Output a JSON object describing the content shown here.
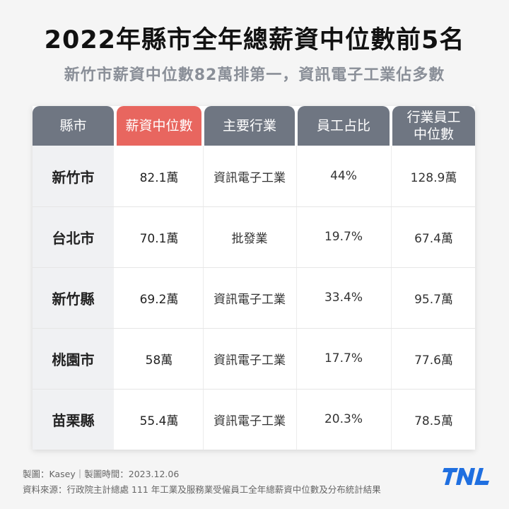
{
  "title": "2022年縣市全年總薪資中位數前5名",
  "subtitle": "新竹市薪資中位數82萬排第一，資訊電子工業佔多數",
  "table": {
    "headers": [
      "縣市",
      "薪資中位數",
      "主要行業",
      "員工占比",
      "行業員工\n中位數"
    ],
    "header_colors": {
      "default": "#6f7682",
      "highlight": "#e8665f"
    },
    "rows": [
      [
        "新竹市",
        "82.1萬",
        "資訊電子工業",
        "44%",
        "128.9萬"
      ],
      [
        "台北市",
        "70.1萬",
        "批發業",
        "19.7%",
        "67.4萬"
      ],
      [
        "新竹縣",
        "69.2萬",
        "資訊電子工業",
        "33.4%",
        "95.7萬"
      ],
      [
        "桃園市",
        "58萬",
        "資訊電子工業",
        "17.7%",
        "77.6萬"
      ],
      [
        "苗栗縣",
        "55.4萬",
        "資訊電子工業",
        "20.3%",
        "78.5萬"
      ]
    ]
  },
  "footer": {
    "credit": "製圖：Kasey｜製圖時間：2023.12.06",
    "source": "資料來源：行政院主計總處 111 年工業及服務業受僱員工全年總薪資中位數及分布統計結果"
  },
  "logo": {
    "text": "TNL",
    "color": "#1f6fe0",
    "icon": "tnl-logo"
  }
}
